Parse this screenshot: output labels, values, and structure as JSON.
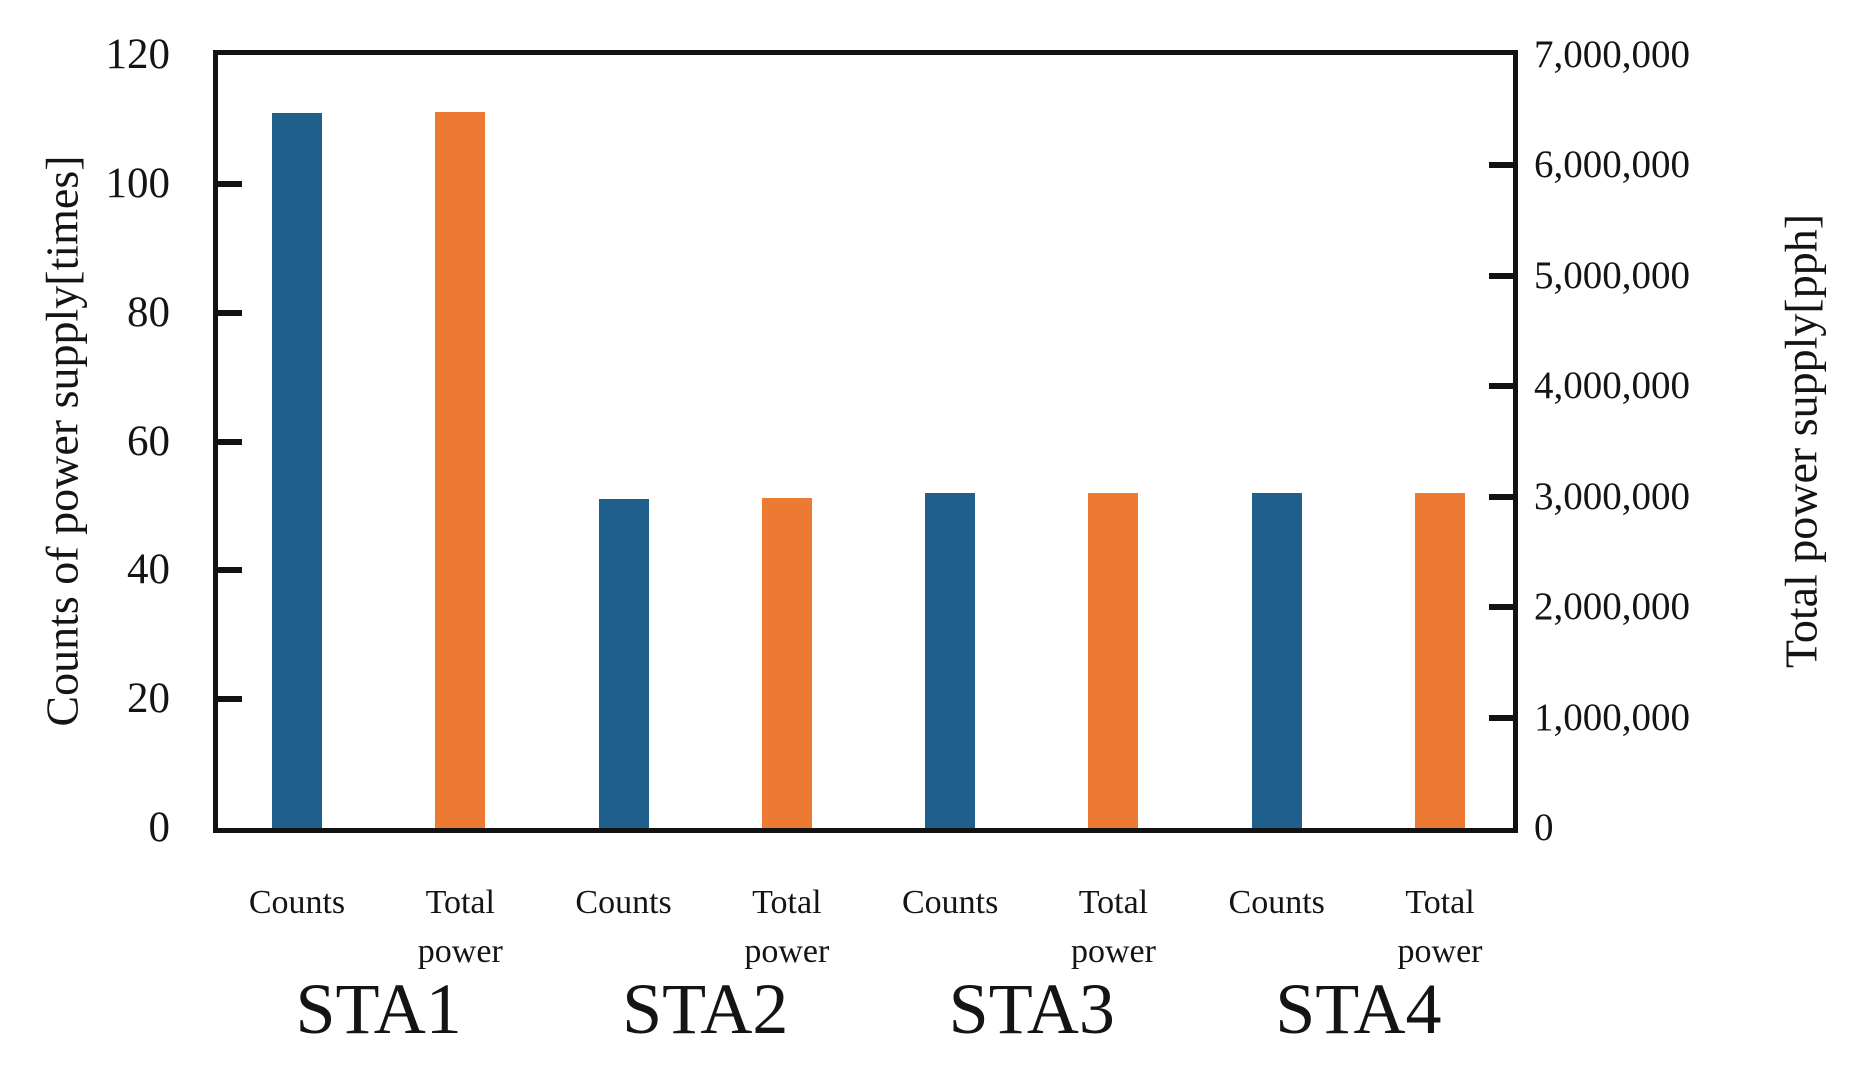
{
  "chart_data": {
    "type": "bar",
    "title": "",
    "categories": [
      "STA1",
      "STA2",
      "STA3",
      "STA4"
    ],
    "series": [
      {
        "name": "Counts",
        "axis": "left",
        "color": "#1e5f8b",
        "values": [
          111,
          51,
          52,
          52
        ]
      },
      {
        "name": "Total power",
        "axis": "right",
        "color": "#ec7a33",
        "values": [
          6480000,
          2990000,
          3030000,
          3030000
        ]
      }
    ],
    "bar_sublabels": {
      "counts": "Counts",
      "total_power_lines": [
        "Total",
        "power"
      ]
    },
    "left_axis": {
      "label": "Counts of power supply[times]",
      "min": 0,
      "max": 120,
      "tick_interval": 20,
      "ticks": [
        0,
        20,
        40,
        60,
        80,
        100,
        120
      ],
      "tick_labels": [
        "0",
        "20",
        "40",
        "60",
        "80",
        "100",
        "120"
      ]
    },
    "right_axis": {
      "label": "Total power supply[pph]",
      "min": 0,
      "max": 7000000,
      "tick_interval": 1000000,
      "ticks": [
        0,
        1000000,
        2000000,
        3000000,
        4000000,
        5000000,
        6000000,
        7000000
      ],
      "tick_labels": [
        "0",
        "1,000,000",
        "2,000,000",
        "3,000,000",
        "4,000,000",
        "5,000,000",
        "6,000,000",
        "7,000,000"
      ]
    },
    "legend": "none",
    "grid": false,
    "tick_direction": "in",
    "colors": {
      "counts_bar": "#1e5f8b",
      "total_power_bar": "#ec7a33",
      "frame": "#121212",
      "text": "#141414",
      "background": "#ffffff"
    }
  }
}
